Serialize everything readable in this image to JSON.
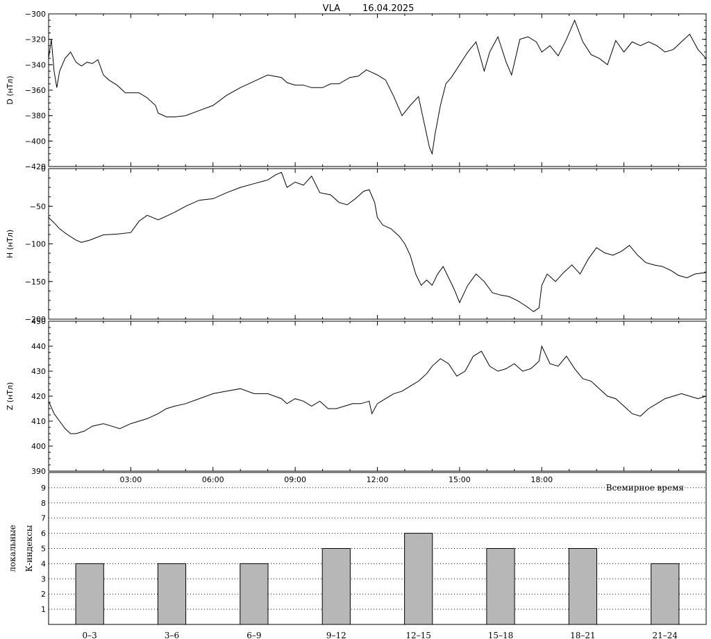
{
  "header": {
    "station": "VLA",
    "date": "16.04.2025"
  },
  "chart_data": [
    {
      "type": "line",
      "ylabel": "D (нТл)",
      "ylim": [
        -420,
        -300
      ],
      "yticks": [
        -420,
        -400,
        -380,
        -360,
        -340,
        -320,
        -300
      ],
      "xlim_hours": [
        0,
        24
      ],
      "series": [
        {
          "x": [
            0,
            0.1,
            0.2,
            0.3,
            0.4,
            0.6,
            0.8,
            1.0,
            1.2,
            1.4,
            1.6,
            1.8,
            2.0,
            2.2,
            2.5,
            2.8,
            3.0,
            3.3,
            3.6,
            3.9,
            4.0,
            4.3,
            4.6,
            5.0,
            5.5,
            6.0,
            6.5,
            7.0,
            7.5,
            8.0,
            8.5,
            8.7,
            9.0,
            9.3,
            9.6,
            10.0,
            10.3,
            10.6,
            11.0,
            11.3,
            11.6,
            11.8,
            12.0,
            12.3,
            12.6,
            12.9,
            13.2,
            13.5,
            13.7,
            13.9,
            14.0,
            14.1,
            14.3,
            14.5,
            14.7,
            15.0,
            15.3,
            15.6,
            15.9,
            16.1,
            16.4,
            16.7,
            16.9,
            17.2,
            17.5,
            17.8,
            18.0,
            18.3,
            18.6,
            18.9,
            19.2,
            19.5,
            19.8,
            20.1,
            20.4,
            20.7,
            21.0,
            21.3,
            21.6,
            21.9,
            22.2,
            22.5,
            22.8,
            23.1,
            23.4,
            23.7,
            24.0
          ],
          "y": [
            -335,
            -320,
            -345,
            -358,
            -345,
            -335,
            -330,
            -338,
            -341,
            -338,
            -339,
            -336,
            -348,
            -352,
            -356,
            -362,
            -362,
            -362,
            -366,
            -372,
            -378,
            -381,
            -381,
            -380,
            -376,
            -372,
            -364,
            -358,
            -353,
            -348,
            -350,
            -354,
            -356,
            -356,
            -358,
            -358,
            -355,
            -355,
            -350,
            -349,
            -344,
            -346,
            -348,
            -352,
            -365,
            -380,
            -372,
            -365,
            -385,
            -405,
            -410,
            -395,
            -372,
            -355,
            -350,
            -340,
            -330,
            -322,
            -345,
            -330,
            -318,
            -338,
            -348,
            -320,
            -318,
            -322,
            -330,
            -325,
            -333,
            -320,
            -305,
            -322,
            -332,
            -335,
            -340,
            -321,
            -330,
            -322,
            -325,
            -322,
            -325,
            -330,
            -328,
            -322,
            -316,
            -328,
            -335
          ]
        }
      ]
    },
    {
      "type": "line",
      "ylabel": "H (нТл)",
      "ylim": [
        -200,
        0
      ],
      "yticks": [
        -200,
        -150,
        -100,
        -50,
        0
      ],
      "xlim_hours": [
        0,
        24
      ],
      "series": [
        {
          "x": [
            0,
            0.2,
            0.4,
            0.7,
            1.0,
            1.2,
            1.5,
            2.0,
            2.5,
            3.0,
            3.3,
            3.6,
            4.0,
            4.3,
            4.6,
            5.0,
            5.5,
            6.0,
            6.5,
            7.0,
            7.5,
            8.0,
            8.3,
            8.5,
            8.7,
            9.0,
            9.3,
            9.6,
            9.9,
            10.3,
            10.6,
            10.9,
            11.2,
            11.5,
            11.7,
            11.9,
            12.0,
            12.2,
            12.5,
            12.8,
            13.0,
            13.2,
            13.4,
            13.6,
            13.8,
            14.0,
            14.2,
            14.4,
            14.6,
            14.8,
            15.0,
            15.3,
            15.6,
            15.9,
            16.2,
            16.5,
            16.8,
            17.1,
            17.4,
            17.7,
            17.9,
            18.0,
            18.2,
            18.5,
            18.8,
            19.1,
            19.4,
            19.7,
            20.0,
            20.3,
            20.6,
            20.9,
            21.2,
            21.5,
            21.8,
            22.1,
            22.4,
            22.7,
            23.0,
            23.3,
            23.6,
            24.0
          ],
          "y": [
            -65,
            -72,
            -80,
            -88,
            -95,
            -98,
            -95,
            -88,
            -87,
            -85,
            -70,
            -62,
            -68,
            -63,
            -58,
            -50,
            -42,
            -40,
            -32,
            -25,
            -20,
            -15,
            -8,
            -5,
            -25,
            -18,
            -22,
            -10,
            -32,
            -35,
            -45,
            -48,
            -40,
            -30,
            -28,
            -45,
            -65,
            -75,
            -80,
            -90,
            -100,
            -115,
            -140,
            -155,
            -148,
            -155,
            -140,
            -130,
            -145,
            -160,
            -178,
            -155,
            -140,
            -150,
            -165,
            -168,
            -170,
            -175,
            -182,
            -190,
            -185,
            -155,
            -140,
            -150,
            -138,
            -128,
            -140,
            -120,
            -105,
            -112,
            -115,
            -110,
            -102,
            -115,
            -125,
            -128,
            -130,
            -135,
            -142,
            -145,
            -140,
            -138
          ]
        }
      ]
    },
    {
      "type": "line",
      "ylabel": "Z (нТл)",
      "ylim": [
        390,
        450
      ],
      "yticks": [
        390,
        400,
        410,
        420,
        430,
        440,
        450
      ],
      "xlim_hours": [
        0,
        24
      ],
      "series": [
        {
          "x": [
            0,
            0.2,
            0.4,
            0.6,
            0.8,
            1.0,
            1.3,
            1.6,
            2.0,
            2.3,
            2.6,
            3.0,
            3.3,
            3.6,
            4.0,
            4.3,
            4.6,
            5.0,
            5.5,
            6.0,
            6.5,
            7.0,
            7.5,
            8.0,
            8.5,
            8.7,
            9.0,
            9.3,
            9.6,
            9.9,
            10.2,
            10.5,
            10.8,
            11.1,
            11.4,
            11.7,
            11.8,
            12.0,
            12.3,
            12.6,
            12.9,
            13.2,
            13.5,
            13.8,
            14.0,
            14.3,
            14.6,
            14.9,
            15.2,
            15.5,
            15.8,
            16.1,
            16.4,
            16.7,
            17.0,
            17.3,
            17.6,
            17.9,
            18.0,
            18.3,
            18.6,
            18.9,
            19.2,
            19.5,
            19.8,
            20.1,
            20.4,
            20.7,
            21.0,
            21.3,
            21.6,
            21.9,
            22.2,
            22.5,
            22.8,
            23.1,
            23.4,
            23.7,
            24.0
          ],
          "y": [
            418,
            413,
            410,
            407,
            405,
            405,
            406,
            408,
            409,
            408,
            407,
            409,
            410,
            411,
            413,
            415,
            416,
            417,
            419,
            421,
            422,
            423,
            421,
            421,
            419,
            417,
            419,
            418,
            416,
            418,
            415,
            415,
            416,
            417,
            417,
            418,
            413,
            417,
            419,
            421,
            422,
            424,
            426,
            429,
            432,
            435,
            433,
            428,
            430,
            436,
            438,
            432,
            430,
            431,
            433,
            430,
            431,
            434,
            440,
            433,
            432,
            436,
            431,
            427,
            426,
            423,
            420,
            419,
            416,
            413,
            412,
            415,
            417,
            419,
            420,
            421,
            420,
            419,
            420
          ]
        }
      ]
    },
    {
      "type": "bar",
      "ylabel_lines": [
        "локальные",
        "К-индексы"
      ],
      "xlabel": "Всемирное время",
      "categories": [
        "0-3",
        "3-6",
        "6-9",
        "9-12",
        "12-15",
        "15-18",
        "18-21",
        "21-24"
      ],
      "values": [
        4,
        4,
        4,
        5,
        6,
        5,
        5,
        4
      ],
      "ylim": [
        0,
        10
      ],
      "yticks": [
        1,
        2,
        3,
        4,
        5,
        6,
        7,
        8,
        9
      ],
      "time_ticks": [
        "03:00",
        "06:00",
        "09:00",
        "12:00",
        "15:00",
        "18:00"
      ],
      "bar_color": "#b7b7b7",
      "grid": "dotted"
    }
  ]
}
